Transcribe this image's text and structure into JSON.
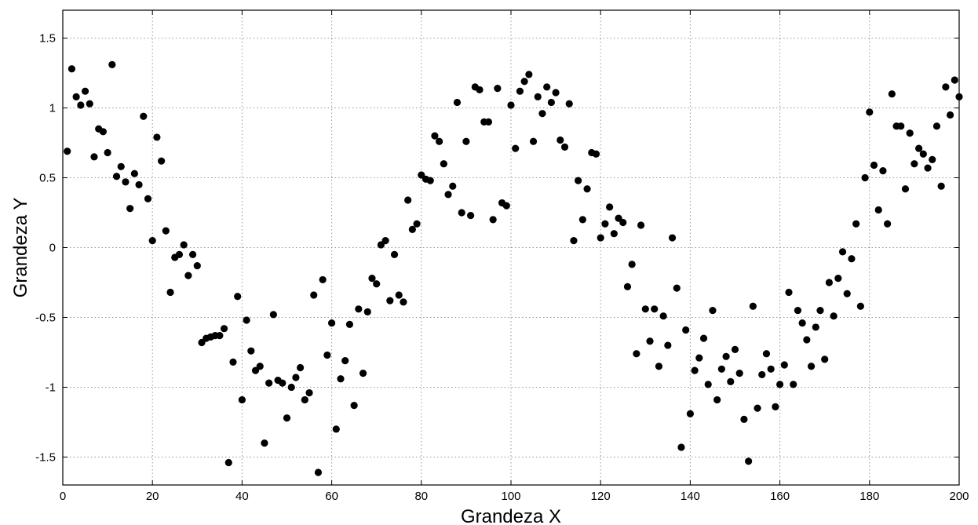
{
  "chart_data": {
    "type": "scatter",
    "title": "",
    "xlabel": "Grandeza X",
    "ylabel": "Grandeza Y",
    "xlim": [
      0,
      200
    ],
    "ylim": [
      -1.7,
      1.7
    ],
    "xticks": [
      0,
      20,
      40,
      60,
      80,
      100,
      120,
      140,
      160,
      180,
      200
    ],
    "xtick_labels": [
      "0",
      "20",
      "40",
      "60",
      "80",
      "100",
      "120",
      "140",
      "160",
      "180",
      "200"
    ],
    "yticks": [
      -1.5,
      -1,
      -0.5,
      0,
      0.5,
      1,
      1.5
    ],
    "ytick_labels": [
      "-1.5",
      "-1",
      "-0.5",
      "0",
      "0.5",
      "1",
      "1.5"
    ],
    "grid": true,
    "marker_color": "#000000",
    "series": [
      {
        "x": [
          1,
          2,
          3,
          4,
          5,
          6,
          7,
          8,
          9,
          10,
          11,
          12,
          13,
          14,
          15,
          16,
          17,
          18,
          19,
          20,
          21,
          22,
          23,
          24,
          25,
          26,
          27,
          28,
          29,
          30,
          31,
          32,
          33,
          34,
          35,
          36,
          37,
          38,
          39,
          40,
          41,
          42,
          43,
          44,
          45,
          46,
          47,
          48,
          49,
          50,
          51,
          52,
          53,
          54,
          55,
          56,
          57,
          58,
          59,
          60,
          61,
          62,
          63,
          64,
          65,
          66,
          67,
          68,
          69,
          70,
          71,
          72,
          73,
          74,
          75,
          76,
          77,
          78,
          79,
          80,
          81,
          82,
          83,
          84,
          85,
          86,
          87,
          88,
          89,
          90,
          91,
          92,
          93,
          94,
          95,
          96,
          97,
          98,
          99,
          100,
          101,
          102,
          103,
          104,
          105,
          106,
          107,
          108,
          109,
          110,
          111,
          112,
          113,
          114,
          115,
          116,
          117,
          118,
          119,
          120,
          121,
          122,
          123,
          124,
          125,
          126,
          127,
          128,
          129,
          130,
          131,
          132,
          133,
          134,
          135,
          136,
          137,
          138,
          139,
          140,
          141,
          142,
          143,
          144,
          145,
          146,
          147,
          148,
          149,
          150,
          151,
          152,
          153,
          154,
          155,
          156,
          157,
          158,
          159,
          160,
          161,
          162,
          163,
          164,
          165,
          166,
          167,
          168,
          169,
          170,
          171,
          172,
          173,
          174,
          175,
          176,
          177,
          178,
          179,
          180,
          181,
          182,
          183,
          184,
          185,
          186,
          187,
          188,
          189,
          190,
          191,
          192,
          193,
          194,
          195,
          196,
          197,
          198,
          199,
          200
        ],
        "y": [
          0.69,
          1.28,
          1.08,
          1.02,
          1.12,
          1.03,
          0.65,
          0.85,
          0.83,
          0.68,
          1.31,
          0.51,
          0.58,
          0.47,
          0.28,
          0.53,
          0.45,
          0.94,
          0.35,
          0.05,
          0.79,
          0.62,
          0.12,
          -0.32,
          -0.07,
          -0.05,
          0.02,
          -0.2,
          -0.05,
          -0.13,
          -0.68,
          -0.65,
          -0.64,
          -0.63,
          -0.63,
          -0.58,
          -1.54,
          -0.82,
          -0.35,
          -1.09,
          -0.52,
          -0.74,
          -0.88,
          -0.85,
          -1.4,
          -0.97,
          -0.48,
          -0.95,
          -0.97,
          -1.22,
          -1.0,
          -0.93,
          -0.86,
          -1.09,
          -1.04,
          -0.34,
          -1.61,
          -0.23,
          -0.77,
          -0.54,
          -1.3,
          -0.94,
          -0.81,
          -0.55,
          -1.13,
          -0.44,
          -0.9,
          -0.46,
          -0.22,
          -0.26,
          0.02,
          0.05,
          -0.38,
          -0.05,
          -0.34,
          -0.39,
          0.34,
          0.13,
          0.17,
          0.52,
          0.49,
          0.48,
          0.8,
          0.76,
          0.6,
          0.38,
          0.44,
          1.04,
          0.25,
          0.76,
          0.23,
          1.15,
          1.13,
          0.9,
          0.9,
          0.2,
          1.14,
          0.32,
          0.3,
          1.02,
          0.71,
          1.12,
          1.19,
          1.24,
          0.76,
          1.08,
          0.96,
          1.15,
          1.04,
          1.11,
          0.77,
          0.72,
          1.03,
          0.05,
          0.48,
          0.2,
          0.42,
          0.68,
          0.67,
          0.07,
          0.17,
          0.29,
          0.1,
          0.21,
          0.18,
          -0.28,
          -0.12,
          -0.76,
          0.16,
          -0.44,
          -0.67,
          -0.44,
          -0.85,
          -0.49,
          -0.7,
          0.07,
          -0.29,
          -1.43,
          -0.59,
          -1.19,
          -0.88,
          -0.79,
          -0.65,
          -0.98,
          -0.45,
          -1.09,
          -0.87,
          -0.78,
          -0.96,
          -0.73,
          -0.9,
          -1.23,
          -1.53,
          -0.42,
          -1.15,
          -0.91,
          -0.76,
          -0.87,
          -1.14,
          -0.98,
          -0.84,
          -0.32,
          -0.98,
          -0.45,
          -0.54,
          -0.66,
          -0.85,
          -0.57,
          -0.45,
          -0.8,
          -0.25,
          -0.49,
          -0.22,
          -0.03,
          -0.33,
          -0.08,
          0.17,
          -0.42,
          0.5,
          0.97,
          0.59,
          0.27,
          0.55,
          0.17,
          1.1,
          0.87,
          0.87,
          0.42,
          0.82,
          0.6,
          0.71,
          0.67,
          0.57,
          0.63,
          0.87,
          0.44,
          1.15,
          0.95,
          1.2,
          1.08
        ]
      }
    ]
  }
}
